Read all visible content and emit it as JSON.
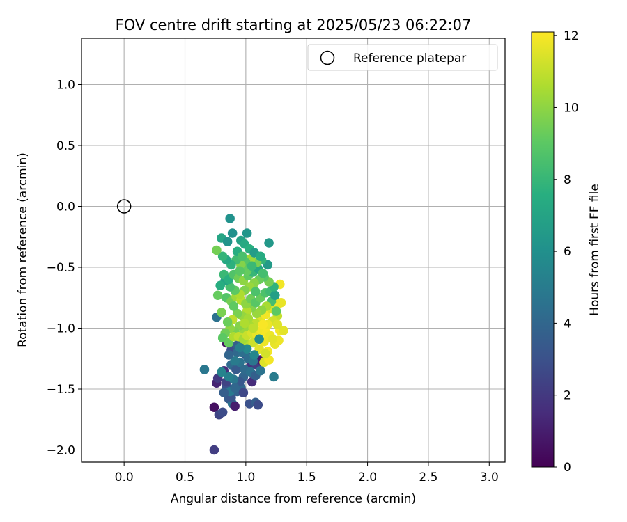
{
  "chart_data": {
    "type": "scatter",
    "title": "FOV centre drift starting at 2025/05/23 06:22:07",
    "xlabel": "Angular distance from reference (arcmin)",
    "ylabel": "Rotation from reference (arcmin)",
    "xlim": [
      -0.35,
      3.13
    ],
    "ylim": [
      -2.1,
      1.38
    ],
    "xticks": [
      0.0,
      0.5,
      1.0,
      1.5,
      2.0,
      2.5,
      3.0
    ],
    "xtick_labels": [
      "0.0",
      "0.5",
      "1.0",
      "1.5",
      "2.0",
      "2.5",
      "3.0"
    ],
    "yticks": [
      1.0,
      0.5,
      0.0,
      -0.5,
      -1.0,
      -1.5,
      -2.0
    ],
    "ytick_labels": [
      "1.0",
      "0.5",
      "0.0",
      "−0.5",
      "−1.0",
      "−1.5",
      "−2.0"
    ],
    "grid": true,
    "legend": {
      "position": "top-right",
      "entries": [
        "Reference platepar"
      ]
    },
    "colorbar": {
      "label": "Hours from first FF file",
      "range": [
        0,
        12.1
      ],
      "ticks": [
        0,
        2,
        4,
        6,
        8,
        10,
        12
      ],
      "tick_labels": [
        "0",
        "2",
        "4",
        "6",
        "8",
        "10",
        "12"
      ],
      "colormap": "viridis"
    },
    "reference_point": {
      "x": 0.0,
      "y": 0.0,
      "label": "Reference platepar"
    },
    "points": [
      [
        0.74,
        -2.0,
        2.2
      ],
      [
        0.74,
        -1.65,
        0.5
      ],
      [
        0.78,
        -1.71,
        2.5
      ],
      [
        0.81,
        -1.69,
        2.8
      ],
      [
        0.66,
        -1.34,
        4.8
      ],
      [
        0.76,
        -1.45,
        1.2
      ],
      [
        0.77,
        -1.41,
        2.0
      ],
      [
        0.82,
        -1.35,
        1.5
      ],
      [
        0.84,
        -1.48,
        3.0
      ],
      [
        0.86,
        -1.58,
        3.5
      ],
      [
        0.89,
        -1.62,
        4.5
      ],
      [
        0.88,
        -1.57,
        3.2
      ],
      [
        0.91,
        -1.64,
        1.0
      ],
      [
        0.93,
        -1.52,
        3.8
      ],
      [
        0.96,
        -1.49,
        4.0
      ],
      [
        1.03,
        -1.62,
        3.0
      ],
      [
        1.08,
        -1.61,
        3.6
      ],
      [
        1.1,
        -1.63,
        2.8
      ],
      [
        1.05,
        -1.44,
        1.5
      ],
      [
        0.98,
        -1.4,
        3.9
      ],
      [
        0.84,
        -1.44,
        2.4
      ],
      [
        0.88,
        -1.3,
        4.2
      ],
      [
        0.92,
        -1.34,
        3.4
      ],
      [
        0.95,
        -1.28,
        4.6
      ],
      [
        1.0,
        -1.22,
        3.0
      ],
      [
        1.04,
        -1.31,
        1.8
      ],
      [
        1.09,
        -1.3,
        2.2
      ],
      [
        1.12,
        -1.26,
        0.8
      ],
      [
        1.15,
        -1.28,
        11.5
      ],
      [
        1.19,
        -1.26,
        11.9
      ],
      [
        1.23,
        -1.4,
        5.0
      ],
      [
        0.76,
        -0.91,
        4.5
      ],
      [
        0.84,
        -1.12,
        0.6
      ],
      [
        0.88,
        -1.18,
        2.8
      ],
      [
        0.93,
        -1.14,
        3.6
      ],
      [
        0.97,
        -1.1,
        4.0
      ],
      [
        1.02,
        -1.13,
        10.8
      ],
      [
        1.06,
        -1.12,
        11.2
      ],
      [
        1.11,
        -1.17,
        11.6
      ],
      [
        1.15,
        -1.11,
        11.8
      ],
      [
        1.18,
        -1.19,
        11.9
      ],
      [
        1.24,
        -1.13,
        11.7
      ],
      [
        1.27,
        -1.1,
        11.8
      ],
      [
        1.28,
        -1.02,
        11.9
      ],
      [
        1.31,
        -1.02,
        11.6
      ],
      [
        1.26,
        -0.9,
        11.0
      ],
      [
        1.22,
        -0.94,
        11.3
      ],
      [
        1.18,
        -0.97,
        11.8
      ],
      [
        1.12,
        -0.93,
        11.5
      ],
      [
        1.08,
        -0.96,
        10.9
      ],
      [
        1.03,
        -0.98,
        10.5
      ],
      [
        0.99,
        -1.02,
        10.2
      ],
      [
        0.95,
        -0.98,
        9.8
      ],
      [
        0.91,
        -1.03,
        9.6
      ],
      [
        0.87,
        -1.0,
        10.0
      ],
      [
        0.83,
        -1.04,
        9.4
      ],
      [
        0.81,
        -1.08,
        9.0
      ],
      [
        0.86,
        -1.12,
        9.2
      ],
      [
        0.9,
        -1.07,
        10.6
      ],
      [
        0.94,
        -1.07,
        11.0
      ],
      [
        0.98,
        -1.09,
        10.4
      ],
      [
        1.01,
        -1.06,
        11.1
      ],
      [
        1.05,
        -1.04,
        11.4
      ],
      [
        1.09,
        -1.05,
        11.7
      ],
      [
        1.13,
        -1.02,
        11.9
      ],
      [
        1.17,
        -1.04,
        12.0
      ],
      [
        1.2,
        -1.06,
        11.8
      ],
      [
        1.16,
        -0.89,
        11.9
      ],
      [
        1.21,
        -0.84,
        11.4
      ],
      [
        1.27,
        -0.8,
        11.9
      ],
      [
        1.29,
        -0.79,
        11.7
      ],
      [
        1.25,
        -0.86,
        9.0
      ],
      [
        1.21,
        -0.78,
        8.4
      ],
      [
        1.17,
        -0.82,
        10.5
      ],
      [
        1.13,
        -0.85,
        10.0
      ],
      [
        1.09,
        -0.88,
        10.2
      ],
      [
        1.05,
        -0.83,
        9.8
      ],
      [
        1.01,
        -0.86,
        10.7
      ],
      [
        0.97,
        -0.9,
        10.1
      ],
      [
        0.93,
        -0.88,
        9.6
      ],
      [
        0.89,
        -0.93,
        10.9
      ],
      [
        0.85,
        -0.95,
        9.3
      ],
      [
        0.8,
        -0.87,
        9.6
      ],
      [
        0.84,
        -0.75,
        8.8
      ],
      [
        0.88,
        -0.78,
        9.5
      ],
      [
        0.92,
        -0.74,
        10.3
      ],
      [
        0.96,
        -0.77,
        10.8
      ],
      [
        1.0,
        -0.8,
        10.0
      ],
      [
        1.04,
        -0.76,
        9.4
      ],
      [
        1.08,
        -0.79,
        8.9
      ],
      [
        1.12,
        -0.75,
        9.2
      ],
      [
        1.16,
        -0.71,
        8.6
      ],
      [
        1.2,
        -0.7,
        8.2
      ],
      [
        1.24,
        -0.73,
        6.8
      ],
      [
        1.28,
        -0.64,
        11.9
      ],
      [
        1.23,
        -0.66,
        7.8
      ],
      [
        1.19,
        -0.62,
        9.5
      ],
      [
        1.15,
        -0.58,
        8.9
      ],
      [
        1.11,
        -0.6,
        9.3
      ],
      [
        1.07,
        -0.63,
        9.9
      ],
      [
        1.03,
        -0.66,
        10.2
      ],
      [
        0.99,
        -0.69,
        9.7
      ],
      [
        0.95,
        -0.72,
        10.6
      ],
      [
        0.91,
        -0.69,
        9.0
      ],
      [
        0.87,
        -0.66,
        8.5
      ],
      [
        0.83,
        -0.61,
        7.0
      ],
      [
        0.79,
        -0.65,
        7.5
      ],
      [
        0.77,
        -0.73,
        9.2
      ],
      [
        0.82,
        -0.56,
        8.1
      ],
      [
        0.86,
        -0.6,
        7.6
      ],
      [
        0.9,
        -0.56,
        8.7
      ],
      [
        0.94,
        -0.59,
        9.4
      ],
      [
        0.98,
        -0.61,
        10.0
      ],
      [
        1.02,
        -0.57,
        9.1
      ],
      [
        1.06,
        -0.54,
        8.0
      ],
      [
        1.1,
        -0.51,
        7.2
      ],
      [
        1.14,
        -0.55,
        8.4
      ],
      [
        1.18,
        -0.48,
        6.5
      ],
      [
        1.13,
        -0.44,
        7.9
      ],
      [
        1.09,
        -0.46,
        9.6
      ],
      [
        1.04,
        -0.43,
        10.3
      ],
      [
        1.0,
        -0.46,
        8.8
      ],
      [
        0.96,
        -0.48,
        9.8
      ],
      [
        0.92,
        -0.44,
        8.3
      ],
      [
        0.88,
        -0.48,
        7.7
      ],
      [
        0.84,
        -0.44,
        7.2
      ],
      [
        0.81,
        -0.41,
        7.9
      ],
      [
        0.76,
        -0.36,
        9.5
      ],
      [
        0.8,
        -0.26,
        7.1
      ],
      [
        0.85,
        -0.29,
        6.2
      ],
      [
        0.89,
        -0.22,
        6.0
      ],
      [
        0.87,
        -0.1,
        6.1
      ],
      [
        1.01,
        -0.22,
        6.3
      ],
      [
        0.96,
        -0.28,
        6.9
      ],
      [
        0.99,
        -0.31,
        7.3
      ],
      [
        1.03,
        -0.35,
        7.6
      ],
      [
        1.07,
        -0.38,
        6.6
      ],
      [
        1.12,
        -0.41,
        7.4
      ],
      [
        1.19,
        -0.3,
        6.4
      ],
      [
        0.93,
        -0.37,
        7.5
      ],
      [
        0.97,
        -0.41,
        8.5
      ],
      [
        1.01,
        -0.53,
        9.2
      ],
      [
        1.05,
        -0.49,
        8.1
      ],
      [
        1.08,
        -0.7,
        8.6
      ],
      [
        0.95,
        -0.53,
        8.9
      ],
      [
        0.9,
        -0.82,
        9.1
      ],
      [
        1.02,
        -0.92,
        10.4
      ],
      [
        1.06,
        -1.0,
        10.9
      ],
      [
        1.14,
        -0.97,
        12.0
      ],
      [
        0.99,
        -0.96,
        10.6
      ],
      [
        0.93,
        -1.2,
        4.1
      ],
      [
        0.97,
        -1.2,
        4.4
      ],
      [
        1.02,
        -1.25,
        4.3
      ],
      [
        1.06,
        -1.27,
        4.7
      ],
      [
        0.91,
        -1.27,
        5.0
      ],
      [
        0.86,
        -1.22,
        3.9
      ],
      [
        0.99,
        -1.34,
        4.2
      ],
      [
        1.04,
        -1.36,
        4.5
      ],
      [
        1.08,
        -1.39,
        3.7
      ],
      [
        0.95,
        -1.44,
        3.3
      ],
      [
        0.9,
        -1.42,
        4.8
      ],
      [
        0.86,
        -1.4,
        5.2
      ],
      [
        0.87,
        -1.52,
        4.9
      ],
      [
        0.91,
        -1.49,
        4.0
      ],
      [
        0.98,
        -1.53,
        2.6
      ],
      [
        0.82,
        -1.53,
        3.6
      ],
      [
        0.8,
        -1.36,
        5.4
      ],
      [
        1.12,
        -1.35,
        4.6
      ],
      [
        1.07,
        -1.22,
        5.5
      ],
      [
        1.11,
        -1.09,
        5.8
      ],
      [
        1.01,
        -1.17,
        5.6
      ],
      [
        0.95,
        -1.16,
        5.1
      ],
      [
        1.16,
        -1.21,
        11.3
      ],
      [
        1.22,
        -1.09,
        11.6
      ],
      [
        1.26,
        -0.97,
        11.5
      ]
    ]
  }
}
